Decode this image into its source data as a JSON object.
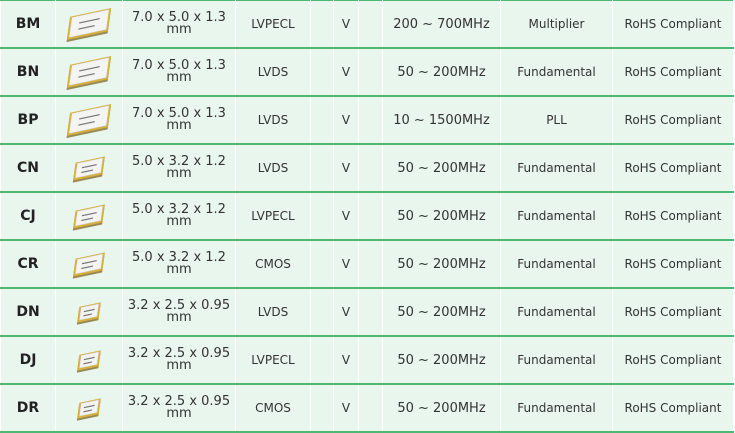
{
  "colors": {
    "background": "#e9f6ee",
    "row_line": "#4db874",
    "chip_pad": "#d9b13a"
  },
  "rows": [
    {
      "code": "BM",
      "icon": "chip-large",
      "size_line1": "7.0 x 5.0 x 1.3",
      "size_line2": "mm",
      "output": "LVPECL",
      "v": "V",
      "frequency": "200 ~ 700MHz",
      "mode": "Multiplier",
      "rohs": "RoHS Compliant"
    },
    {
      "code": "BN",
      "icon": "chip-large",
      "size_line1": "7.0 x 5.0 x 1.3",
      "size_line2": "mm",
      "output": "LVDS",
      "v": "V",
      "frequency": "50 ~ 200MHz",
      "mode": "Fundamental",
      "rohs": "RoHS Compliant"
    },
    {
      "code": "BP",
      "icon": "chip-large",
      "size_line1": "7.0 x 5.0 x 1.3",
      "size_line2": "mm",
      "output": "LVDS",
      "v": "V",
      "frequency": "10 ~ 1500MHz",
      "mode": "PLL",
      "rohs": "RoHS Compliant"
    },
    {
      "code": "CN",
      "icon": "chip-medium",
      "size_line1": "5.0 x 3.2 x 1.2",
      "size_line2": "mm",
      "output": "LVDS",
      "v": "V",
      "frequency": "50 ~ 200MHz",
      "mode": "Fundamental",
      "rohs": "RoHS Compliant"
    },
    {
      "code": "CJ",
      "icon": "chip-medium",
      "size_line1": "5.0 x 3.2 x 1.2",
      "size_line2": "mm",
      "output": "LVPECL",
      "v": "V",
      "frequency": "50 ~ 200MHz",
      "mode": "Fundamental",
      "rohs": "RoHS Compliant"
    },
    {
      "code": "CR",
      "icon": "chip-medium",
      "size_line1": "5.0 x 3.2 x 1.2",
      "size_line2": "mm",
      "output": "CMOS",
      "v": "V",
      "frequency": "50 ~ 200MHz",
      "mode": "Fundamental",
      "rohs": "RoHS Compliant"
    },
    {
      "code": "DN",
      "icon": "chip-small",
      "size_line1": "3.2 x 2.5 x 0.95",
      "size_line2": "mm",
      "output": "LVDS",
      "v": "V",
      "frequency": "50 ~ 200MHz",
      "mode": "Fundamental",
      "rohs": "RoHS Compliant"
    },
    {
      "code": "DJ",
      "icon": "chip-small",
      "size_line1": "3.2 x 2.5 x 0.95",
      "size_line2": "mm",
      "output": "LVPECL",
      "v": "V",
      "frequency": "50 ~ 200MHz",
      "mode": "Fundamental",
      "rohs": "RoHS Compliant"
    },
    {
      "code": "DR",
      "icon": "chip-small",
      "size_line1": "3.2 x 2.5 x 0.95",
      "size_line2": "mm",
      "output": "CMOS",
      "v": "V",
      "frequency": "50 ~ 200MHz",
      "mode": "Fundamental",
      "rohs": "RoHS Compliant"
    }
  ]
}
